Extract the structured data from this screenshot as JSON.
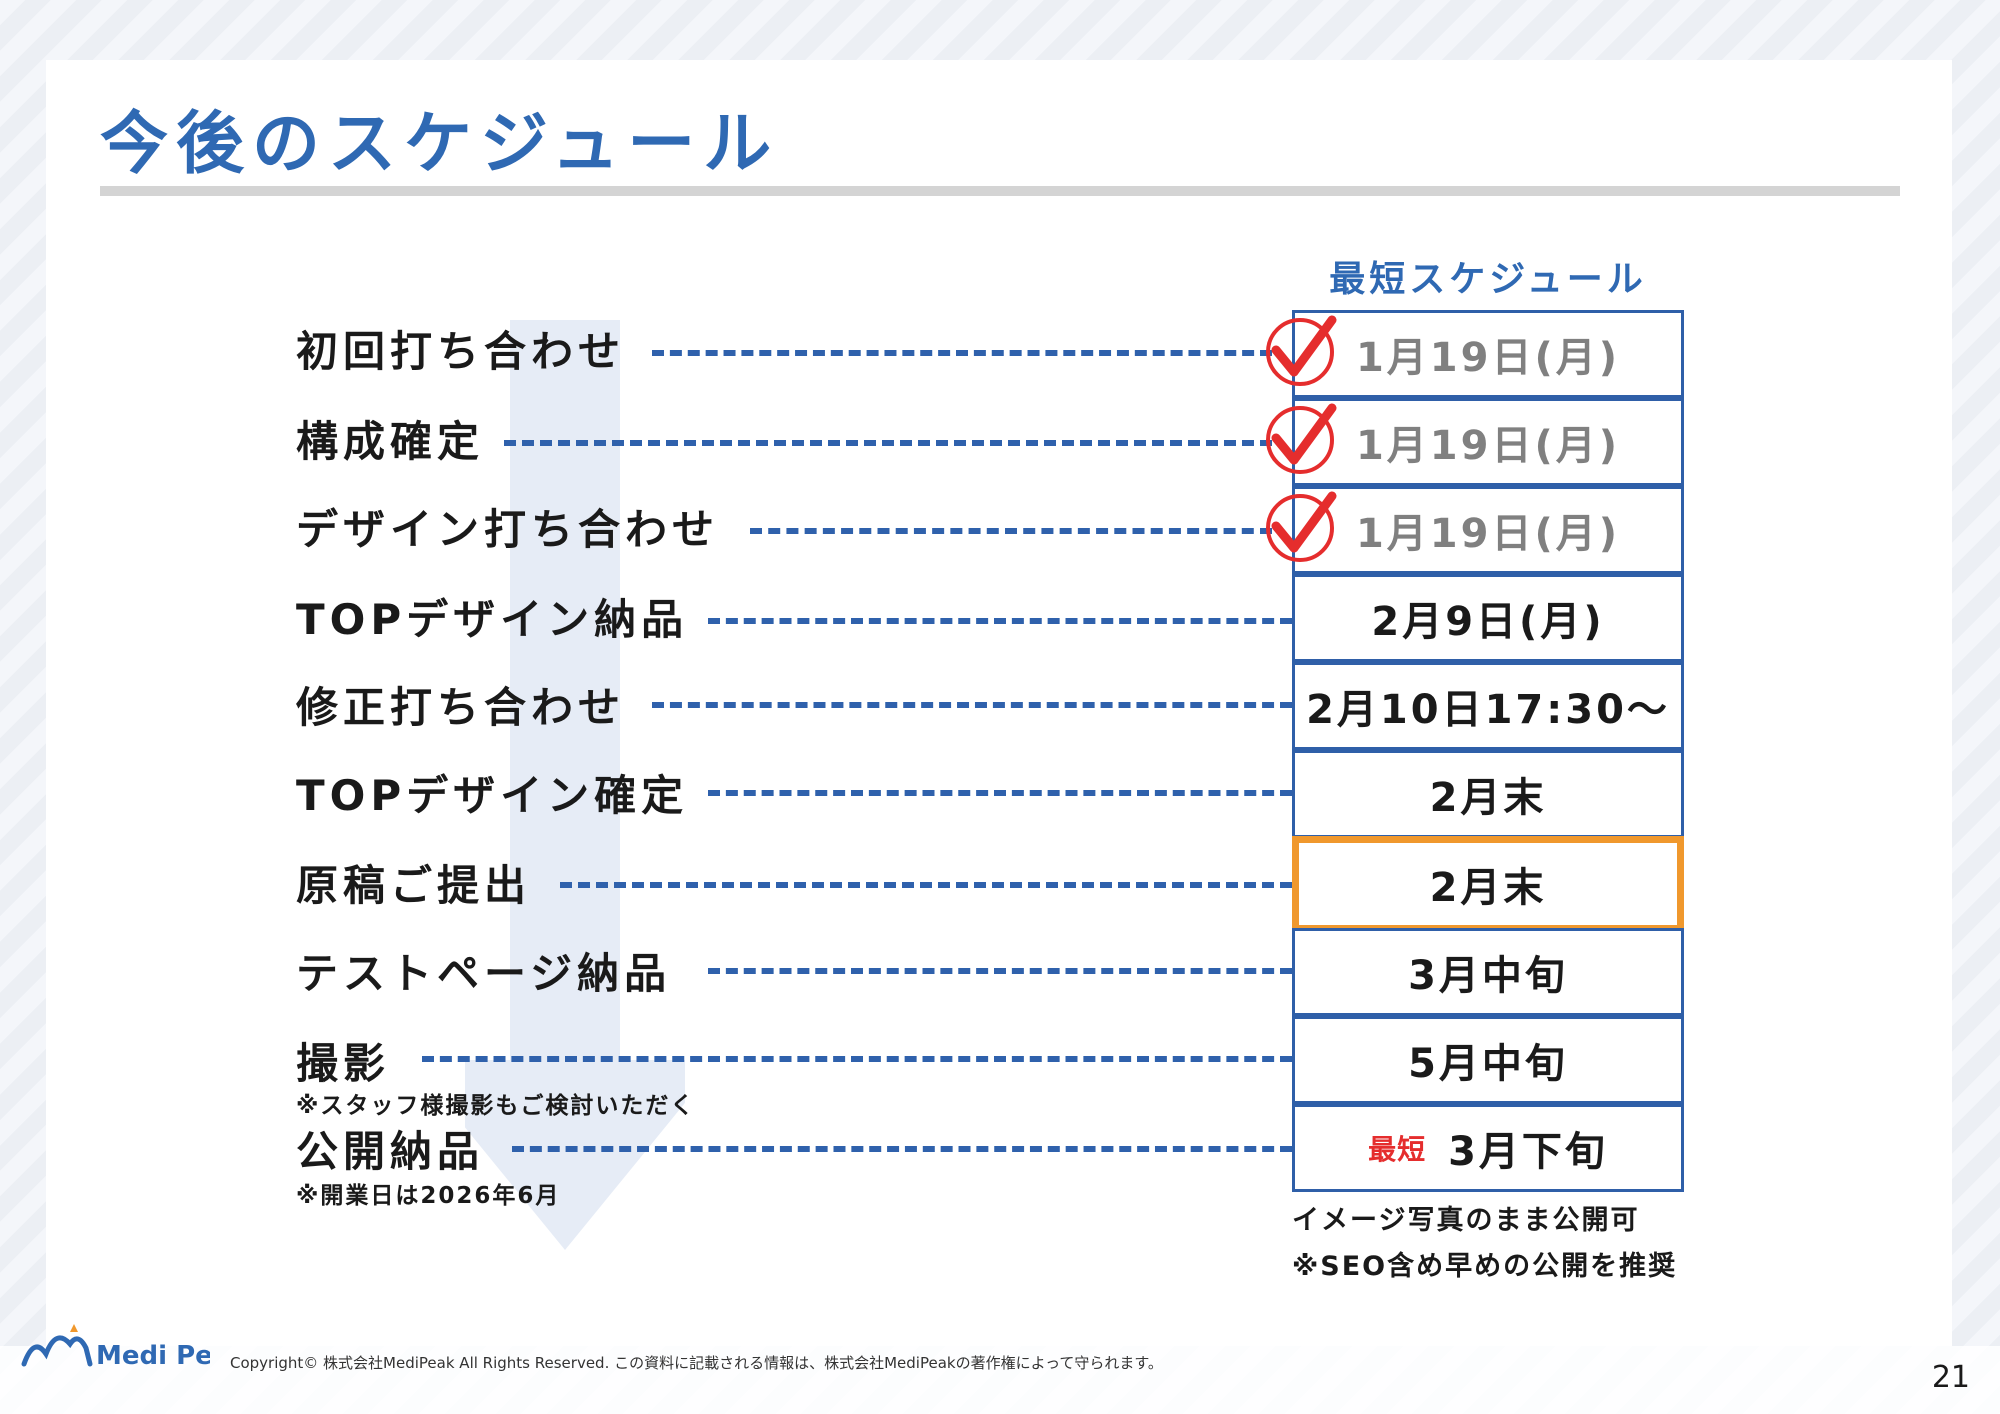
{
  "title": "今後のスケジュール",
  "schedule_header": "最短スケジュール",
  "rows": [
    {
      "label": "初回打ち合わせ",
      "date": "1月19日(月)",
      "status": "done"
    },
    {
      "label": "構成確定",
      "date": "1月19日(月)",
      "status": "done"
    },
    {
      "label": "デザイン打ち合わせ",
      "date": "1月19日(月)",
      "status": "done"
    },
    {
      "label": "TOPデザイン納品",
      "date": "2月9日(月)",
      "status": "pending"
    },
    {
      "label": "修正打ち合わせ",
      "date": "2月10日17:30～",
      "status": "pending"
    },
    {
      "label": "TOPデザイン確定",
      "date": "2月末",
      "status": "pending"
    },
    {
      "label": "原稿ご提出",
      "date": "2月末",
      "status": "highlighted"
    },
    {
      "label": "テストページ納品",
      "date": "3月中旬",
      "status": "pending"
    },
    {
      "label": "撮影",
      "note": "※スタッフ様撮影もご検討いただく",
      "date": "5月中旬",
      "status": "pending"
    },
    {
      "label": "公開納品",
      "note": "※開業日は2026年6月",
      "date": "3月下旬",
      "date_prefix": "最短",
      "status": "pending"
    }
  ],
  "footnotes": [
    "イメージ写真のまま公開可",
    "※SEO含め早めの公開を推奨"
  ],
  "footer": {
    "logo_text": "Medi Peak",
    "copyright": "Copyright© 株式会社MediPeak All Rights Reserved. この資料に記載される情報は、株式会社MediPeakの著作権によって守られます。",
    "page_number": "21"
  },
  "colors": {
    "title_blue": "#2f69b3",
    "dash_blue": "#2f61ac",
    "check_red": "#e52d2d",
    "highlight_orange": "#f0982d"
  },
  "icons": [
    "checkmark-icon",
    "down-arrow-icon",
    "medipeak-logo-icon"
  ]
}
